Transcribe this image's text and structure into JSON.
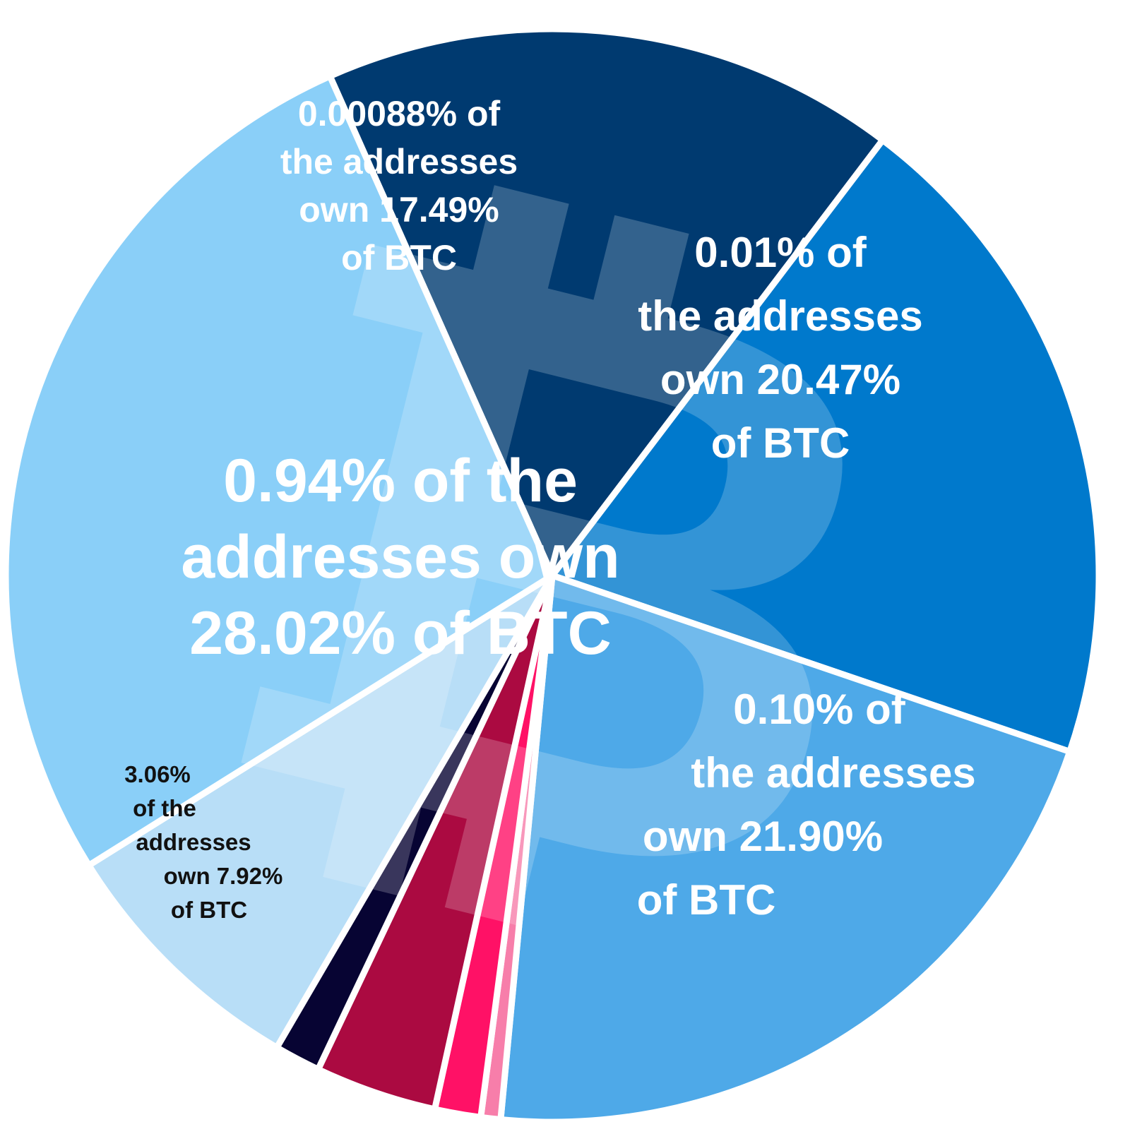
{
  "chart_data": {
    "type": "pie",
    "slices": [
      {
        "addresses_pct": "0.00088%",
        "btc_pct": 17.49,
        "color": "#003a70",
        "label_lines": [
          "0.00088% of",
          "the addresses",
          "own 17.49%",
          "of BTC"
        ]
      },
      {
        "addresses_pct": "0.01%",
        "btc_pct": 20.47,
        "color": "#0079cc",
        "label_lines": [
          "0.01% of",
          "the addresses",
          "own 20.47%",
          "of BTC"
        ]
      },
      {
        "addresses_pct": "0.10%",
        "btc_pct": 21.9,
        "color": "#4ea9e8",
        "label_lines": [
          "0.10% of",
          "the addresses",
          "own 21.90%",
          "of BTC"
        ]
      },
      {
        "addresses_pct": "",
        "btc_pct": 0.6,
        "color": "#f77eaa",
        "label_lines": []
      },
      {
        "addresses_pct": "",
        "btc_pct": 1.4,
        "color": "#ff1166",
        "label_lines": []
      },
      {
        "addresses_pct": "",
        "btc_pct": 3.7,
        "color": "#ab0a41",
        "label_lines": []
      },
      {
        "addresses_pct": "",
        "btc_pct": 1.4,
        "color": "#070433",
        "label_lines": []
      },
      {
        "addresses_pct": "3.06%",
        "btc_pct": 7.92,
        "color": "#b8def7",
        "label_lines": [
          "3.06%",
          "of the",
          "addresses",
          "own 7.92%",
          "of BTC"
        ]
      },
      {
        "addresses_pct": "0.94%",
        "btc_pct": 28.02,
        "color": "#8acff8",
        "label_lines": [
          "0.94% of the",
          "addresses own",
          "28.02% of BTC"
        ]
      }
    ],
    "title": "",
    "background_icon": "bitcoin-symbol",
    "separator_color": "#ffffff"
  }
}
